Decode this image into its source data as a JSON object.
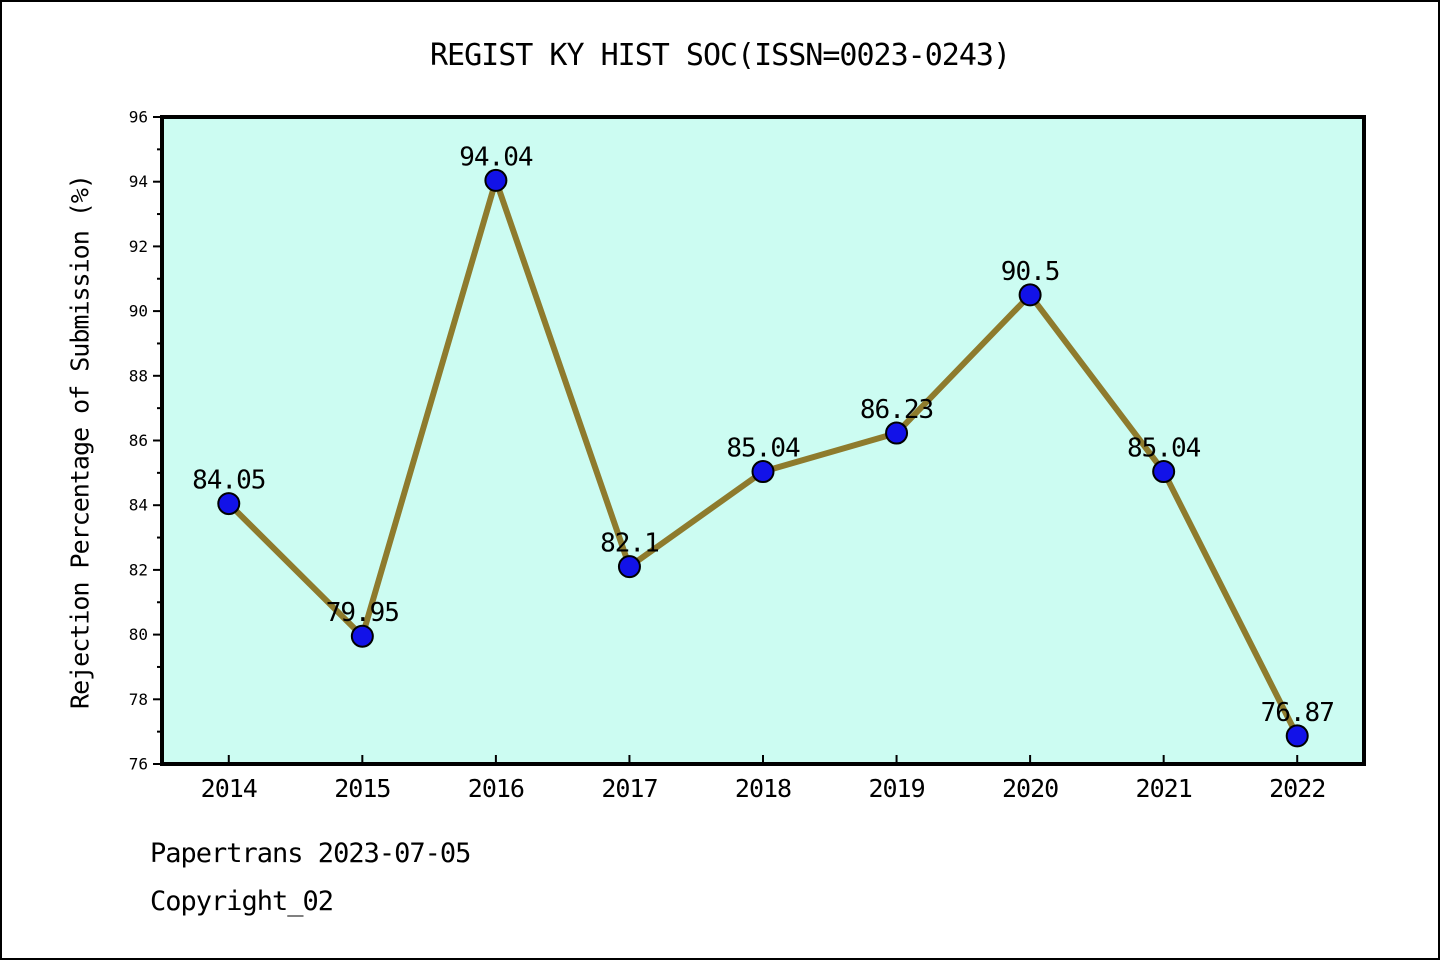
{
  "footer": {
    "line1": "Papertrans 2023-07-05",
    "line2": "Copyright_02"
  },
  "chart_data": {
    "type": "line",
    "title": "REGIST KY HIST SOC(ISSN=0023-0243)",
    "xlabel": "",
    "ylabel": "Rejection Percentage of Submission (%)",
    "categories": [
      "2014",
      "2015",
      "2016",
      "2017",
      "2018",
      "2019",
      "2020",
      "2021",
      "2022"
    ],
    "values": [
      84.05,
      79.95,
      94.04,
      82.1,
      85.04,
      86.23,
      90.5,
      85.04,
      76.87
    ],
    "point_labels": [
      "84.05",
      "79.95",
      "94.04",
      "82.1",
      "85.04",
      "86.23",
      "90.5",
      "85.04",
      "76.87"
    ],
    "ylim": [
      76,
      96
    ],
    "yticks_major": [
      76,
      78,
      80,
      82,
      84,
      86,
      88,
      90,
      92,
      94,
      96
    ],
    "yticks_minor": [
      77,
      79,
      81,
      83,
      85,
      87,
      89,
      91,
      93,
      95
    ],
    "grid": false,
    "legend": null,
    "styles": {
      "plot_bg": "#ccfcf2",
      "line_color": "#8e7b2d",
      "marker_fill": "#1212e8",
      "marker_edge": "#000000",
      "axis_color": "#000000",
      "label_color": "#000000"
    }
  }
}
